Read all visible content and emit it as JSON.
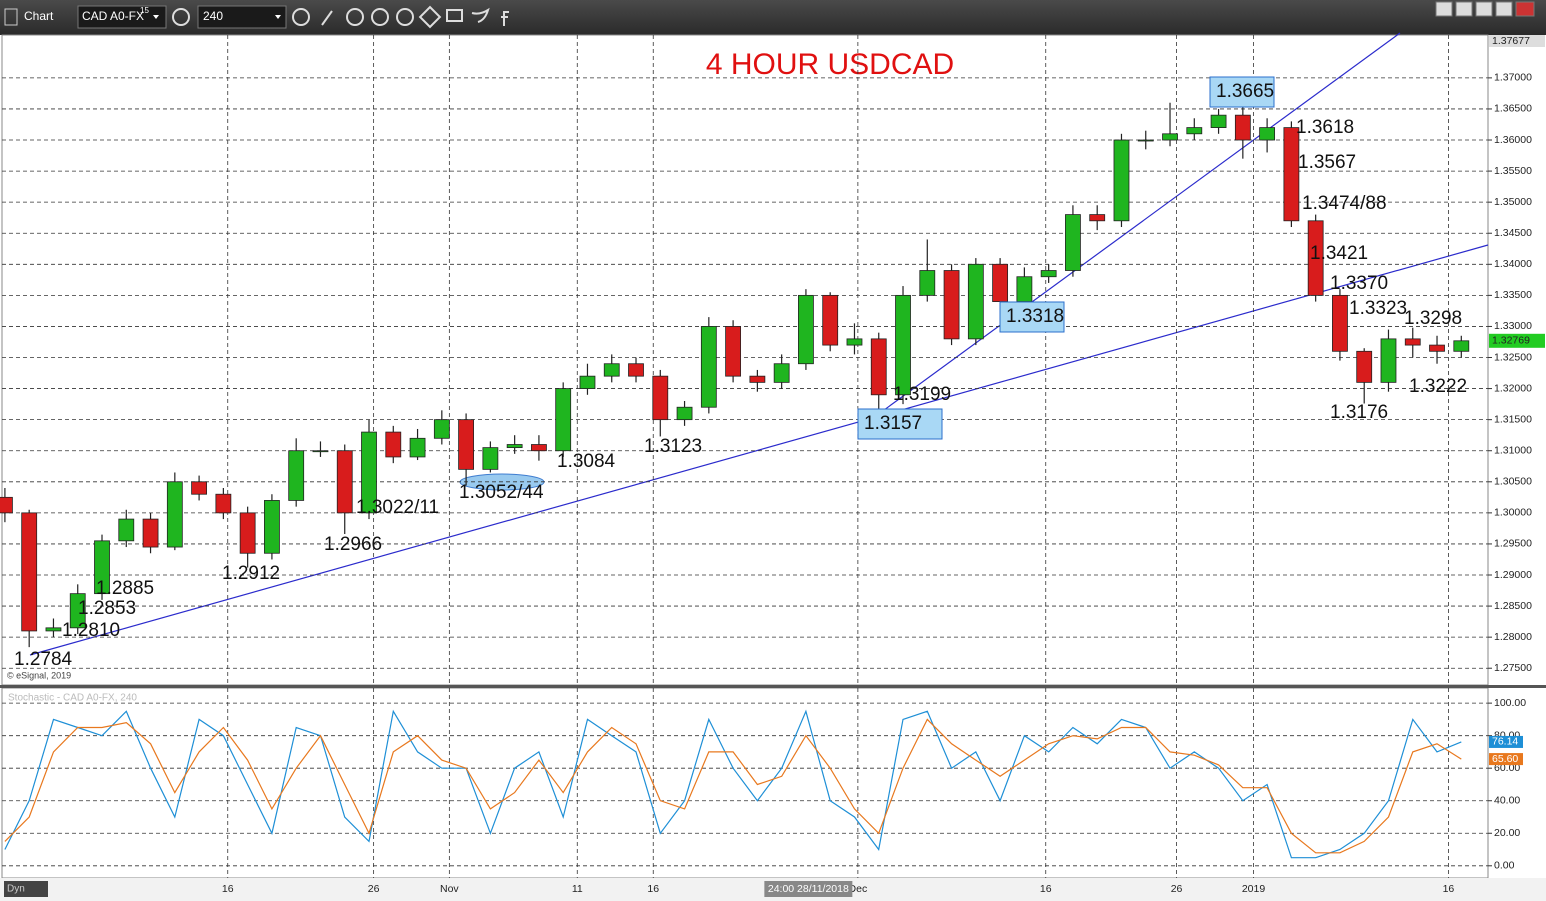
{
  "toolbar": {
    "app": "Chart",
    "symbol": "CAD A0-FX",
    "superscript": "15",
    "interval": "240",
    "status": "Dyn"
  },
  "chart_data": [
    {
      "type": "candlestick",
      "title": "4 HOUR USDCAD",
      "watermark": "© eSignal, 2019",
      "open": [
        1.3025,
        1.3,
        1.281,
        1.2815,
        1.287,
        1.2955,
        1.299,
        1.2945,
        1.305,
        1.303,
        1.3,
        1.2935,
        1.302,
        1.31,
        1.31,
        1.3,
        1.313,
        1.309,
        1.312,
        1.315,
        1.307,
        1.3105,
        1.311,
        1.31,
        1.32,
        1.322,
        1.324,
        1.322,
        1.315,
        1.317,
        1.33,
        1.322,
        1.321,
        1.324,
        1.335,
        1.327,
        1.328,
        1.319,
        1.335,
        1.339,
        1.328,
        1.34,
        1.334,
        1.338,
        1.339,
        1.348,
        1.347,
        1.36,
        1.36,
        1.361,
        1.362,
        1.364,
        1.36,
        1.362,
        1.347,
        1.335,
        1.326,
        1.321,
        1.328,
        1.327,
        1.326
      ],
      "high": [
        1.304,
        1.3005,
        1.283,
        1.2885,
        1.2965,
        1.3005,
        1.3,
        1.3065,
        1.306,
        1.304,
        1.301,
        1.303,
        1.312,
        1.3115,
        1.311,
        1.315,
        1.314,
        1.3135,
        1.3165,
        1.316,
        1.3115,
        1.3125,
        1.3125,
        1.321,
        1.324,
        1.3255,
        1.325,
        1.323,
        1.318,
        1.3315,
        1.331,
        1.323,
        1.3255,
        1.336,
        1.3355,
        1.3305,
        1.329,
        1.3365,
        1.344,
        1.34,
        1.341,
        1.341,
        1.3395,
        1.34,
        1.3495,
        1.3495,
        1.361,
        1.3615,
        1.366,
        1.3635,
        1.365,
        1.3665,
        1.3635,
        1.363,
        1.348,
        1.336,
        1.3265,
        1.3295,
        1.3298,
        1.3285,
        1.3285
      ],
      "low": [
        1.2985,
        1.2784,
        1.28,
        1.2805,
        1.286,
        1.2945,
        1.2935,
        1.294,
        1.302,
        1.299,
        1.2912,
        1.2925,
        1.301,
        1.309,
        1.2966,
        1.299,
        1.308,
        1.3085,
        1.311,
        1.3044,
        1.3065,
        1.3095,
        1.3084,
        1.309,
        1.319,
        1.321,
        1.321,
        1.3123,
        1.314,
        1.316,
        1.321,
        1.3195,
        1.32,
        1.323,
        1.326,
        1.3255,
        1.3157,
        1.3175,
        1.334,
        1.327,
        1.327,
        1.3318,
        1.333,
        1.337,
        1.338,
        1.3455,
        1.346,
        1.3585,
        1.359,
        1.36,
        1.361,
        1.357,
        1.358,
        1.346,
        1.334,
        1.3245,
        1.3176,
        1.3195,
        1.325,
        1.324,
        1.325
      ],
      "close": [
        1.3,
        1.281,
        1.2815,
        1.287,
        1.2955,
        1.299,
        1.2945,
        1.305,
        1.303,
        1.3,
        1.2935,
        1.302,
        1.31,
        1.31,
        1.3,
        1.313,
        1.309,
        1.312,
        1.315,
        1.307,
        1.3105,
        1.311,
        1.31,
        1.32,
        1.322,
        1.324,
        1.322,
        1.315,
        1.317,
        1.33,
        1.322,
        1.321,
        1.324,
        1.335,
        1.327,
        1.328,
        1.319,
        1.335,
        1.339,
        1.328,
        1.34,
        1.334,
        1.338,
        1.339,
        1.348,
        1.347,
        1.36,
        1.36,
        1.361,
        1.362,
        1.364,
        1.36,
        1.362,
        1.347,
        1.335,
        1.326,
        1.321,
        1.328,
        1.327,
        1.326,
        1.32769
      ],
      "up_color": "#1fb51f",
      "down_color": "#d81c1c",
      "xlim": [
        -0.12,
        61.1
      ],
      "xticks": [
        {
          "value": 9.18,
          "label": "16"
        },
        {
          "value": 15.19,
          "label": "26"
        },
        {
          "value": 18.31,
          "label": "Nov"
        },
        {
          "value": 23.58,
          "label": "11"
        },
        {
          "value": 26.71,
          "label": "16"
        },
        {
          "value": 35.14,
          "label": "Dec"
        },
        {
          "value": 42.88,
          "label": "16"
        },
        {
          "value": 48.27,
          "label": "26"
        },
        {
          "value": 51.44,
          "label": "2019"
        },
        {
          "value": 59.47,
          "label": "16"
        }
      ],
      "ylim": [
        1.2723,
        1.3769
      ],
      "yticks": [
        {
          "value": 1.275,
          "label": "1.27500"
        },
        {
          "value": 1.28,
          "label": "1.28000"
        },
        {
          "value": 1.285,
          "label": "1.28500"
        },
        {
          "value": 1.29,
          "label": "1.29000"
        },
        {
          "value": 1.295,
          "label": "1.29500"
        },
        {
          "value": 1.3,
          "label": "1.30000"
        },
        {
          "value": 1.305,
          "label": "1.30500"
        },
        {
          "value": 1.31,
          "label": "1.31000"
        },
        {
          "value": 1.315,
          "label": "1.31500"
        },
        {
          "value": 1.32,
          "label": "1.32000"
        },
        {
          "value": 1.325,
          "label": "1.32500"
        },
        {
          "value": 1.33,
          "label": "1.33000"
        },
        {
          "value": 1.335,
          "label": "1.33500"
        },
        {
          "value": 1.34,
          "label": "1.34000"
        },
        {
          "value": 1.345,
          "label": "1.34500"
        },
        {
          "value": 1.35,
          "label": "1.35000"
        },
        {
          "value": 1.355,
          "label": "1.35500"
        },
        {
          "value": 1.36,
          "label": "1.36000"
        },
        {
          "value": 1.365,
          "label": "1.36500"
        },
        {
          "value": 1.37,
          "label": "1.37000"
        }
      ],
      "grid": true,
      "last_price": 1.32769,
      "axis_high": 1.37677,
      "crosshair": {
        "value": 33.1,
        "label": "24:00 28/11/2018"
      },
      "annotations": [
        "1.2784",
        "1.2810",
        "1.2853",
        "1.2885",
        "1.2912",
        "1.2966",
        "1.3022/11",
        "1.3052/44",
        "1.3084",
        "1.3123",
        "1.3157",
        "1.3199",
        "1.3318",
        "1.3665",
        "1.3618",
        "1.3567",
        "1.3474/88",
        "1.3421",
        "1.3370",
        "1.3323",
        "1.3298",
        "1.3222",
        "1.3176"
      ]
    },
    {
      "type": "line",
      "title": "Stochastic - CAD A0-FX, 240",
      "xlim": [
        -0.12,
        61.1
      ],
      "series": [
        {
          "color": "#1e8fd6",
          "values": [
            10,
            40,
            90,
            85,
            80,
            95,
            60,
            30,
            90,
            80,
            50,
            20,
            85,
            80,
            30,
            15,
            95,
            70,
            60,
            60,
            20,
            60,
            70,
            30,
            90,
            80,
            70,
            20,
            40,
            90,
            60,
            40,
            60,
            95,
            40,
            30,
            10,
            90,
            95,
            60,
            70,
            40,
            80,
            70,
            85,
            75,
            90,
            85,
            60,
            70,
            60,
            40,
            50,
            5,
            5,
            10,
            20,
            40,
            90,
            70,
            76.14
          ],
          "last_label": "76.14"
        },
        {
          "color": "#e8781e",
          "values": [
            15,
            30,
            70,
            85,
            85,
            88,
            75,
            45,
            70,
            85,
            65,
            35,
            60,
            80,
            50,
            20,
            70,
            80,
            65,
            60,
            35,
            45,
            65,
            45,
            70,
            85,
            75,
            40,
            35,
            70,
            70,
            50,
            55,
            80,
            60,
            35,
            20,
            60,
            90,
            75,
            65,
            55,
            65,
            75,
            80,
            78,
            85,
            85,
            70,
            68,
            62,
            48,
            48,
            20,
            8,
            8,
            15,
            30,
            70,
            75,
            65.6
          ],
          "last_label": "65.60"
        }
      ],
      "ylim": [
        -7.5,
        109.3
      ],
      "yticks": [
        {
          "value": 0,
          "label": "0.00"
        },
        {
          "value": 20,
          "label": "20.00"
        },
        {
          "value": 40,
          "label": "40.00"
        },
        {
          "value": 60,
          "label": "60.00"
        },
        {
          "value": 80,
          "label": "80.00"
        },
        {
          "value": 100,
          "label": "100.00"
        }
      ],
      "grid": true
    }
  ]
}
